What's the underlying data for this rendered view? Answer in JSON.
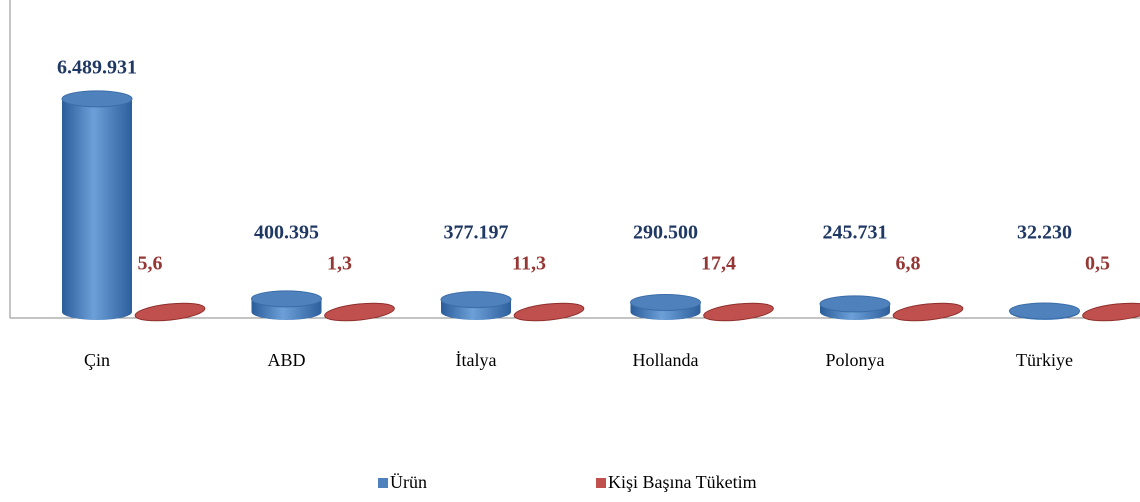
{
  "chart_data": {
    "type": "bar3d",
    "categories": [
      "Çin",
      "ABD",
      "İtalya",
      "Hollanda",
      "Polonya",
      "Türkiye"
    ],
    "series": [
      {
        "name": "Ürün",
        "color": "#4f81bd",
        "values": [
          6489931,
          400395,
          377197,
          290500,
          245731,
          32230
        ],
        "value_labels": [
          "6.489.931",
          "400.395",
          "377.197",
          "290.500",
          "245.731",
          "32.230"
        ],
        "label_color": "#1f3864"
      },
      {
        "name": "Kişi Başına Tüketim",
        "color": "#c0504d",
        "values": [
          5.6,
          1.3,
          11.3,
          17.4,
          6.8,
          0.5
        ],
        "value_labels": [
          "5,6",
          "1,3",
          "11,3",
          "17,4",
          "6,8",
          "0,5"
        ],
        "label_color": "#953735"
      }
    ],
    "ylim": [
      0,
      9500000
    ]
  }
}
